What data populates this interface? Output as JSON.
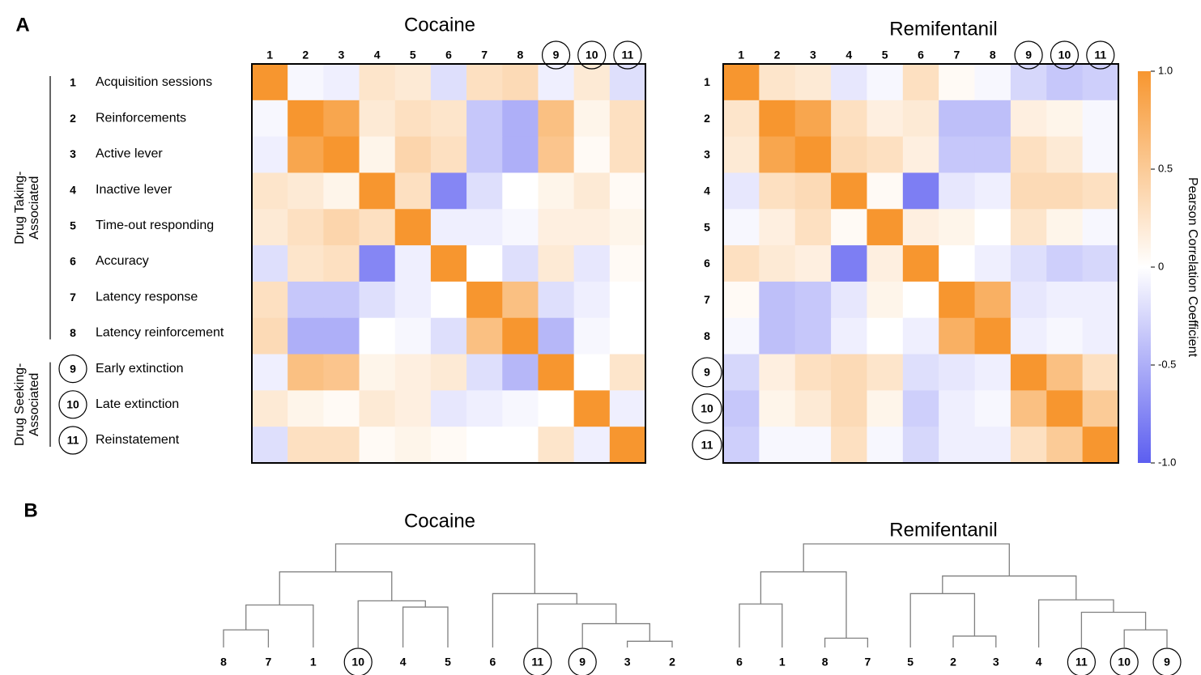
{
  "panels": [
    "A",
    "B"
  ],
  "variables": [
    "Acquisition sessions",
    "Reinforcements",
    "Active lever",
    "Inactive lever",
    "Time-out responding",
    "Accuracy",
    "Latency response",
    "Latency reinforcement",
    "Early extinction",
    "Late extinction",
    "Reinstatement"
  ],
  "groups": [
    {
      "lines": [
        "Drug Taking-",
        "Associated"
      ],
      "size": 8,
      "circled": false
    },
    {
      "lines": [
        "Drug Seeking-",
        "Associated"
      ],
      "size": 3,
      "circled": true
    }
  ],
  "colorbar": {
    "label": "Pearson Correlation Coefficient",
    "zlim": [
      -1,
      1
    ],
    "zticks": [
      {
        "value": 1,
        "label": "1.0"
      },
      0.5,
      0,
      -0.5,
      {
        "value": -1,
        "label": "-1.0"
      }
    ],
    "colors": {
      "low": "#5c5ef0",
      "mid": "#ffffff",
      "high": "#f7962f"
    }
  },
  "chart_data": [
    {
      "type": "heatmap",
      "title": "Cocaine",
      "categories": [
        "1",
        "2",
        "3",
        "4",
        "5",
        "6",
        "7",
        "8",
        "9",
        "10",
        "11"
      ],
      "values": [
        [
          1,
          -0.05,
          -0.1,
          0.25,
          0.2,
          -0.2,
          0.3,
          0.35,
          -0.1,
          0.2,
          -0.2
        ],
        [
          -0.05,
          1,
          0.85,
          0.2,
          0.3,
          0.25,
          -0.35,
          -0.5,
          0.6,
          0.1,
          0.3
        ],
        [
          -0.1,
          0.85,
          1,
          0.1,
          0.4,
          0.3,
          -0.35,
          -0.5,
          0.55,
          0.05,
          0.3
        ],
        [
          0.25,
          0.2,
          0.1,
          1,
          0.3,
          -0.75,
          -0.2,
          0,
          0.1,
          0.2,
          0.05
        ],
        [
          0.2,
          0.3,
          0.4,
          0.3,
          1,
          -0.1,
          -0.1,
          -0.05,
          0.15,
          0.15,
          0.1
        ],
        [
          -0.2,
          0.25,
          0.3,
          -0.75,
          -0.1,
          1,
          0,
          -0.2,
          0.2,
          -0.15,
          0.05
        ],
        [
          0.3,
          -0.35,
          -0.35,
          -0.2,
          -0.1,
          0,
          1,
          0.6,
          -0.2,
          -0.1,
          0
        ],
        [
          0.35,
          -0.5,
          -0.5,
          0,
          -0.05,
          -0.2,
          0.6,
          1,
          -0.45,
          -0.05,
          0
        ],
        [
          -0.1,
          0.6,
          0.55,
          0.1,
          0.15,
          0.2,
          -0.2,
          -0.45,
          1,
          0,
          0.25
        ],
        [
          0.2,
          0.1,
          0.05,
          0.2,
          0.15,
          -0.15,
          -0.1,
          -0.05,
          0,
          1,
          -0.1
        ],
        [
          -0.2,
          0.3,
          0.3,
          0.05,
          0.1,
          0.05,
          0,
          0,
          0.25,
          -0.1,
          1
        ]
      ]
    },
    {
      "type": "heatmap",
      "title": "Remifentanil",
      "categories": [
        "1",
        "2",
        "3",
        "4",
        "5",
        "6",
        "7",
        "8",
        "9",
        "10",
        "11"
      ],
      "values": [
        [
          1,
          0.25,
          0.2,
          -0.15,
          -0.05,
          0.3,
          0.05,
          -0.05,
          -0.25,
          -0.35,
          -0.3
        ],
        [
          0.25,
          1,
          0.85,
          0.3,
          0.15,
          0.2,
          -0.4,
          -0.4,
          0.15,
          0.1,
          -0.05
        ],
        [
          0.2,
          0.85,
          1,
          0.35,
          0.3,
          0.15,
          -0.35,
          -0.35,
          0.3,
          0.2,
          -0.05
        ],
        [
          -0.15,
          0.3,
          0.35,
          1,
          0.05,
          -0.8,
          -0.15,
          -0.1,
          0.35,
          0.35,
          0.3
        ],
        [
          -0.05,
          0.15,
          0.3,
          0.05,
          1,
          0.15,
          0.1,
          0,
          0.25,
          0.1,
          -0.05
        ],
        [
          0.3,
          0.2,
          0.15,
          -0.8,
          0.15,
          1,
          0,
          -0.1,
          -0.2,
          -0.3,
          -0.25
        ],
        [
          0.05,
          -0.4,
          -0.35,
          -0.15,
          0.1,
          0,
          1,
          0.75,
          -0.15,
          -0.1,
          -0.1
        ],
        [
          -0.05,
          -0.4,
          -0.35,
          -0.1,
          0,
          -0.1,
          0.75,
          1,
          -0.1,
          -0.05,
          -0.1
        ],
        [
          -0.25,
          0.15,
          0.3,
          0.35,
          0.25,
          -0.2,
          -0.15,
          -0.1,
          1,
          0.6,
          0.3
        ],
        [
          -0.35,
          0.1,
          0.2,
          0.35,
          0.1,
          -0.3,
          -0.1,
          -0.05,
          0.6,
          1,
          0.5
        ],
        [
          -0.3,
          -0.05,
          -0.05,
          0.3,
          -0.05,
          -0.25,
          -0.1,
          -0.1,
          0.3,
          0.5,
          1
        ]
      ]
    },
    {
      "type": "dendrogram",
      "title": "Cocaine",
      "color": "#808080",
      "tree": {
        "height": 1,
        "children": [
          {
            "height": 0.73,
            "children": [
              {
                "height": 0.41,
                "children": [
                  {
                    "height": 0.17,
                    "children": [
                      {
                        "label": "8"
                      },
                      {
                        "label": "7"
                      }
                    ]
                  },
                  {
                    "label": "1"
                  }
                ]
              },
              {
                "height": 0.45,
                "children": [
                  {
                    "label": "10"
                  },
                  {
                    "height": 0.39,
                    "children": [
                      {
                        "label": "4"
                      },
                      {
                        "label": "5"
                      }
                    ]
                  }
                ]
              }
            ]
          },
          {
            "height": 0.52,
            "children": [
              {
                "label": "6"
              },
              {
                "height": 0.42,
                "children": [
                  {
                    "label": "11"
                  },
                  {
                    "height": 0.23,
                    "children": [
                      {
                        "label": "9"
                      },
                      {
                        "height": 0.06,
                        "children": [
                          {
                            "label": "3"
                          },
                          {
                            "label": "2"
                          }
                        ]
                      }
                    ]
                  }
                ]
              }
            ]
          }
        ]
      }
    },
    {
      "type": "dendrogram",
      "title": "Remifentanil",
      "color": "#808080",
      "tree": {
        "height": 1,
        "children": [
          {
            "height": 0.73,
            "children": [
              {
                "height": 0.42,
                "children": [
                  {
                    "label": "6"
                  },
                  {
                    "label": "1"
                  }
                ]
              },
              {
                "height": 0.09,
                "children": [
                  {
                    "label": "8"
                  },
                  {
                    "label": "7"
                  }
                ]
              }
            ]
          },
          {
            "height": 0.69,
            "children": [
              {
                "height": 0.52,
                "children": [
                  {
                    "label": "5"
                  },
                  {
                    "height": 0.11,
                    "children": [
                      {
                        "label": "2"
                      },
                      {
                        "label": "3"
                      }
                    ]
                  }
                ]
              },
              {
                "height": 0.46,
                "children": [
                  {
                    "label": "4"
                  },
                  {
                    "height": 0.34,
                    "children": [
                      {
                        "label": "11"
                      },
                      {
                        "height": 0.17,
                        "children": [
                          {
                            "label": "10"
                          },
                          {
                            "label": "9"
                          }
                        ]
                      }
                    ]
                  }
                ]
              }
            ]
          }
        ]
      }
    }
  ]
}
